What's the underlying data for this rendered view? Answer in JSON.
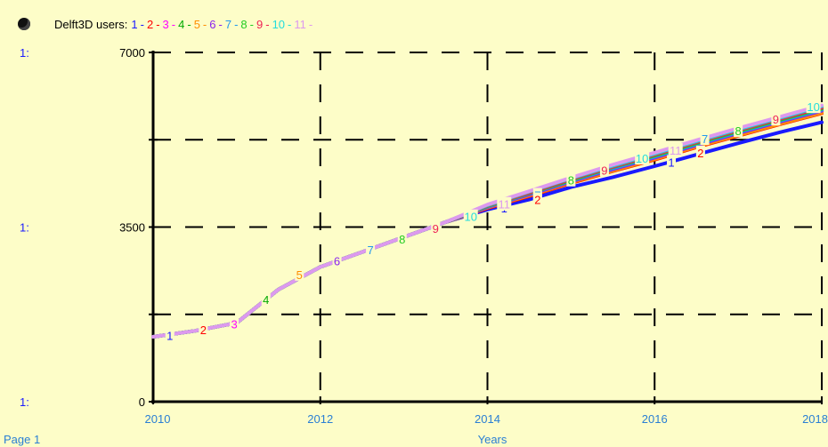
{
  "chart_data": {
    "type": "line",
    "title": "Delft3D users:",
    "xlabel": "Years",
    "footer": "Page 1",
    "scale_prefix": "1:",
    "xlim": [
      2010,
      2018
    ],
    "ylim": [
      0,
      7000
    ],
    "x_ticks": [
      "2010",
      "2012",
      "2014",
      "2016",
      "2018"
    ],
    "y_ticks": [
      "0",
      "3500",
      "7000"
    ],
    "grid": true,
    "legend_placement": "top-left",
    "series": [
      {
        "name": "1",
        "color": "#1a1aff",
        "values": [
          [
            2010,
            1300
          ],
          [
            2010.5,
            1420
          ],
          [
            2011,
            1580
          ],
          [
            2011.5,
            2250
          ],
          [
            2012,
            2700
          ],
          [
            2012.5,
            3000
          ],
          [
            2013,
            3300
          ],
          [
            2013.5,
            3600
          ],
          [
            2014,
            3850
          ],
          [
            2014.5,
            4050
          ],
          [
            2015,
            4300
          ],
          [
            2015.5,
            4500
          ],
          [
            2016,
            4720
          ],
          [
            2016.5,
            4950
          ],
          [
            2017,
            5180
          ],
          [
            2017.5,
            5400
          ],
          [
            2018,
            5600
          ]
        ]
      },
      {
        "name": "2",
        "color": "#ff0000",
        "values": [
          [
            2010,
            1300
          ],
          [
            2010.5,
            1420
          ],
          [
            2011,
            1580
          ],
          [
            2011.5,
            2250
          ],
          [
            2012,
            2700
          ],
          [
            2012.5,
            3000
          ],
          [
            2013,
            3300
          ],
          [
            2013.5,
            3600
          ],
          [
            2014,
            3880
          ],
          [
            2014.5,
            4120
          ],
          [
            2015,
            4380
          ],
          [
            2015.5,
            4620
          ],
          [
            2016,
            4850
          ],
          [
            2016.5,
            5100
          ],
          [
            2017,
            5330
          ],
          [
            2017.5,
            5560
          ],
          [
            2018,
            5780
          ]
        ]
      },
      {
        "name": "3",
        "color": "#ff00ff",
        "values": [
          [
            2010,
            1300
          ],
          [
            2010.5,
            1420
          ],
          [
            2011,
            1580
          ],
          [
            2011.5,
            2250
          ],
          [
            2012,
            2700
          ],
          [
            2012.5,
            3000
          ],
          [
            2013,
            3300
          ],
          [
            2013.5,
            3600
          ],
          [
            2014,
            3890
          ],
          [
            2014.5,
            4140
          ],
          [
            2015,
            4400
          ],
          [
            2015.5,
            4650
          ],
          [
            2016,
            4880
          ],
          [
            2016.5,
            5130
          ],
          [
            2017,
            5370
          ],
          [
            2017.5,
            5600
          ],
          [
            2018,
            5820
          ]
        ]
      },
      {
        "name": "4",
        "color": "#00aa00",
        "values": [
          [
            2010,
            1300
          ],
          [
            2010.5,
            1420
          ],
          [
            2011,
            1580
          ],
          [
            2011.5,
            2250
          ],
          [
            2012,
            2700
          ],
          [
            2012.5,
            3000
          ],
          [
            2013,
            3300
          ],
          [
            2013.5,
            3600
          ],
          [
            2014,
            3900
          ],
          [
            2014.5,
            4160
          ],
          [
            2015,
            4420
          ],
          [
            2015.5,
            4670
          ],
          [
            2016,
            4900
          ],
          [
            2016.5,
            5150
          ],
          [
            2017,
            5390
          ],
          [
            2017.5,
            5620
          ],
          [
            2018,
            5840
          ]
        ]
      },
      {
        "name": "5",
        "color": "#ff8c00",
        "values": [
          [
            2010,
            1300
          ],
          [
            2010.5,
            1420
          ],
          [
            2011,
            1580
          ],
          [
            2011.5,
            2250
          ],
          [
            2012,
            2700
          ],
          [
            2012.5,
            3000
          ],
          [
            2013,
            3300
          ],
          [
            2013.5,
            3600
          ],
          [
            2014,
            3890
          ],
          [
            2014.5,
            4130
          ],
          [
            2015,
            4390
          ],
          [
            2015.5,
            4630
          ],
          [
            2016,
            4860
          ],
          [
            2016.5,
            5110
          ],
          [
            2017,
            5340
          ],
          [
            2017.5,
            5570
          ],
          [
            2018,
            5790
          ]
        ]
      },
      {
        "name": "6",
        "color": "#8822ee",
        "values": [
          [
            2010,
            1300
          ],
          [
            2010.5,
            1420
          ],
          [
            2011,
            1580
          ],
          [
            2011.5,
            2250
          ],
          [
            2012,
            2700
          ],
          [
            2012.5,
            3000
          ],
          [
            2013,
            3300
          ],
          [
            2013.5,
            3600
          ],
          [
            2014,
            3900
          ],
          [
            2014.5,
            4150
          ],
          [
            2015,
            4410
          ],
          [
            2015.5,
            4660
          ],
          [
            2016,
            4890
          ],
          [
            2016.5,
            5140
          ],
          [
            2017,
            5380
          ],
          [
            2017.5,
            5610
          ],
          [
            2018,
            5830
          ]
        ]
      },
      {
        "name": "7",
        "color": "#2299ee",
        "values": [
          [
            2010,
            1300
          ],
          [
            2010.5,
            1420
          ],
          [
            2011,
            1580
          ],
          [
            2011.5,
            2250
          ],
          [
            2012,
            2700
          ],
          [
            2012.5,
            3000
          ],
          [
            2013,
            3300
          ],
          [
            2013.5,
            3600
          ],
          [
            2014,
            3910
          ],
          [
            2014.5,
            4170
          ],
          [
            2015,
            4430
          ],
          [
            2015.5,
            4680
          ],
          [
            2016,
            4910
          ],
          [
            2016.5,
            5160
          ],
          [
            2017,
            5400
          ],
          [
            2017.5,
            5630
          ],
          [
            2018,
            5850
          ]
        ]
      },
      {
        "name": "8",
        "color": "#22cc22",
        "values": [
          [
            2010,
            1300
          ],
          [
            2010.5,
            1420
          ],
          [
            2011,
            1580
          ],
          [
            2011.5,
            2250
          ],
          [
            2012,
            2700
          ],
          [
            2012.5,
            3000
          ],
          [
            2013,
            3300
          ],
          [
            2013.5,
            3600
          ],
          [
            2014,
            3920
          ],
          [
            2014.5,
            4180
          ],
          [
            2015,
            4440
          ],
          [
            2015.5,
            4700
          ],
          [
            2016,
            4930
          ],
          [
            2016.5,
            5180
          ],
          [
            2017,
            5420
          ],
          [
            2017.5,
            5650
          ],
          [
            2018,
            5870
          ]
        ]
      },
      {
        "name": "9",
        "color": "#ee2255",
        "values": [
          [
            2010,
            1300
          ],
          [
            2010.5,
            1420
          ],
          [
            2011,
            1580
          ],
          [
            2011.5,
            2250
          ],
          [
            2012,
            2700
          ],
          [
            2012.5,
            3000
          ],
          [
            2013,
            3300
          ],
          [
            2013.5,
            3600
          ],
          [
            2014,
            3930
          ],
          [
            2014.5,
            4190
          ],
          [
            2015,
            4460
          ],
          [
            2015.5,
            4710
          ],
          [
            2016,
            4950
          ],
          [
            2016.5,
            5200
          ],
          [
            2017,
            5440
          ],
          [
            2017.5,
            5670
          ],
          [
            2018,
            5890
          ]
        ]
      },
      {
        "name": "10",
        "color": "#22dddd",
        "values": [
          [
            2010,
            1300
          ],
          [
            2010.5,
            1420
          ],
          [
            2011,
            1580
          ],
          [
            2011.5,
            2250
          ],
          [
            2012,
            2700
          ],
          [
            2012.5,
            3000
          ],
          [
            2013,
            3300
          ],
          [
            2013.5,
            3600
          ],
          [
            2014,
            3940
          ],
          [
            2014.5,
            4210
          ],
          [
            2015,
            4480
          ],
          [
            2015.5,
            4730
          ],
          [
            2016,
            4970
          ],
          [
            2016.5,
            5220
          ],
          [
            2017,
            5460
          ],
          [
            2017.5,
            5690
          ],
          [
            2018,
            5920
          ]
        ]
      },
      {
        "name": "11",
        "color": "#dd99ee",
        "values": [
          [
            2010,
            1300
          ],
          [
            2010.5,
            1420
          ],
          [
            2011,
            1580
          ],
          [
            2011.5,
            2250
          ],
          [
            2012,
            2700
          ],
          [
            2012.5,
            3000
          ],
          [
            2013,
            3300
          ],
          [
            2013.5,
            3600
          ],
          [
            2014,
            3950
          ],
          [
            2014.5,
            4220
          ],
          [
            2015,
            4490
          ],
          [
            2015.5,
            4750
          ],
          [
            2016,
            4990
          ],
          [
            2016.5,
            5240
          ],
          [
            2017,
            5480
          ],
          [
            2017.5,
            5710
          ],
          [
            2018,
            5940
          ]
        ]
      }
    ],
    "point_labels": [
      {
        "text": "1",
        "color": "#1a1aff",
        "x": 2010.2,
        "y": 1330
      },
      {
        "text": "2",
        "color": "#ff0000",
        "x": 2010.6,
        "y": 1440
      },
      {
        "text": "3",
        "color": "#ff00ff",
        "x": 2010.97,
        "y": 1560
      },
      {
        "text": "4",
        "color": "#00aa00",
        "x": 2011.35,
        "y": 2050
      },
      {
        "text": "5",
        "color": "#ff8c00",
        "x": 2011.75,
        "y": 2550
      },
      {
        "text": "6",
        "color": "#8822ee",
        "x": 2012.2,
        "y": 2820
      },
      {
        "text": "7",
        "color": "#2299ee",
        "x": 2012.6,
        "y": 3050
      },
      {
        "text": "8",
        "color": "#22cc22",
        "x": 2012.98,
        "y": 3260
      },
      {
        "text": "9",
        "color": "#ee2255",
        "x": 2013.38,
        "y": 3470
      },
      {
        "text": "10",
        "color": "#22dddd",
        "x": 2013.8,
        "y": 3710
      },
      {
        "text": "1",
        "color": "#1a1aff",
        "x": 2014.2,
        "y": 3880
      },
      {
        "text": "11",
        "color": "#dd99ee",
        "x": 2014.2,
        "y": 3960
      },
      {
        "text": "7",
        "color": "#2299ee",
        "x": 2014.6,
        "y": 4140
      },
      {
        "text": "2",
        "color": "#ff0000",
        "x": 2014.6,
        "y": 4050
      },
      {
        "text": "8",
        "color": "#22cc22",
        "x": 2015.0,
        "y": 4440
      },
      {
        "text": "9",
        "color": "#ee2255",
        "x": 2015.4,
        "y": 4640
      },
      {
        "text": "10",
        "color": "#22dddd",
        "x": 2015.85,
        "y": 4880
      },
      {
        "text": "1",
        "color": "#1a1aff",
        "x": 2016.2,
        "y": 4800
      },
      {
        "text": "11",
        "color": "#dd99ee",
        "x": 2016.25,
        "y": 5040
      },
      {
        "text": "2",
        "color": "#ff0000",
        "x": 2016.55,
        "y": 4990
      },
      {
        "text": "7",
        "color": "#2299ee",
        "x": 2016.6,
        "y": 5270
      },
      {
        "text": "8",
        "color": "#22cc22",
        "x": 2017.0,
        "y": 5430
      },
      {
        "text": "9",
        "color": "#ee2255",
        "x": 2017.45,
        "y": 5660
      },
      {
        "text": "10",
        "color": "#22dddd",
        "x": 2017.9,
        "y": 5910
      }
    ]
  }
}
